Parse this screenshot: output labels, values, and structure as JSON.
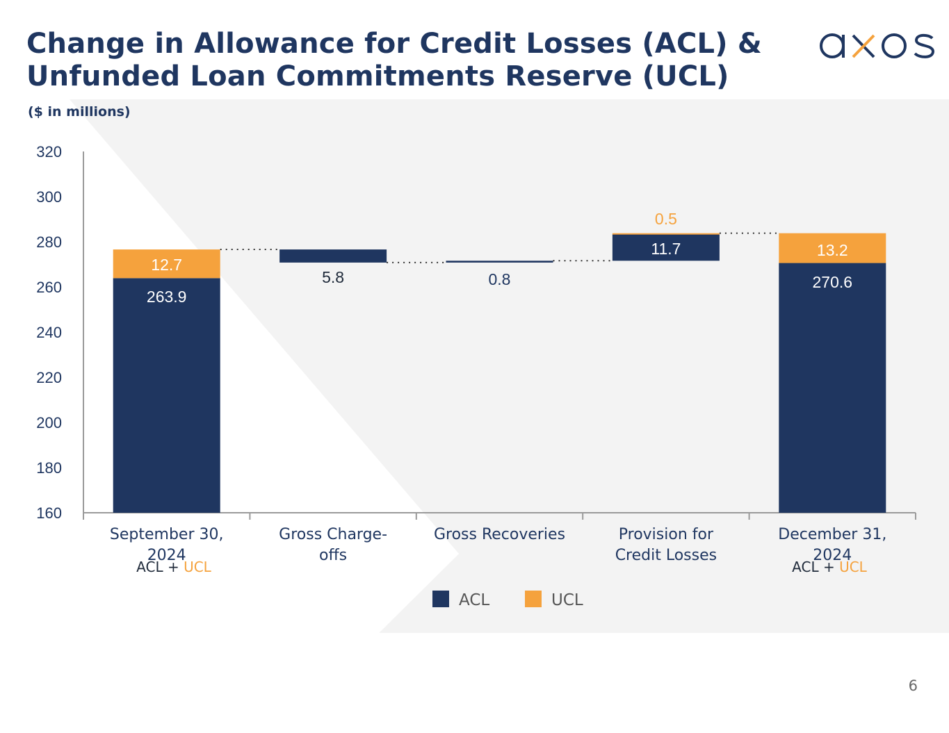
{
  "title_line1": "Change in Allowance for Credit Losses (ACL) &",
  "title_line2": "Unfunded Loan Commitments Reserve (UCL)",
  "subtitle": "($ in millions)",
  "logo": {
    "text": "axos",
    "colors": {
      "main": "#1f3660",
      "accent": "#f5a23d"
    }
  },
  "page_number": "6",
  "combo_note": {
    "left": "ACL",
    "plus": "+",
    "right": "UCL"
  },
  "colors": {
    "acl": "#1f3660",
    "ucl": "#f5a23d",
    "axis": "#9a9a9a",
    "panel": "#f3f3f3"
  },
  "chart_data": {
    "type": "bar",
    "subtype": "waterfall",
    "categories": [
      "September 30,\n2024",
      "Gross Charge-\noffs",
      "Gross Recoveries",
      "Provision for\nCredit Losses",
      "December 31,\n2024"
    ],
    "ylim": [
      160,
      320
    ],
    "yticks": [
      160,
      180,
      200,
      220,
      240,
      260,
      280,
      300,
      320
    ],
    "legend": [
      "ACL",
      "UCL"
    ],
    "legend_position": "bottom",
    "bars": [
      {
        "category": "September 30,\n2024",
        "segments": [
          {
            "series": "ACL",
            "from": 160,
            "to": 263.9,
            "label": "263.9"
          },
          {
            "series": "UCL",
            "from": 263.9,
            "to": 276.6,
            "label": "12.7"
          }
        ]
      },
      {
        "category": "Gross Charge-\noffs",
        "segments": [
          {
            "series": "ACL",
            "from": 270.8,
            "to": 276.6,
            "label": "5.8"
          }
        ]
      },
      {
        "category": "Gross Recoveries",
        "segments": [
          {
            "series": "ACL",
            "from": 270.8,
            "to": 271.6,
            "label": "0.8"
          }
        ]
      },
      {
        "category": "Provision for\nCredit Losses",
        "segments": [
          {
            "series": "ACL",
            "from": 271.6,
            "to": 283.3,
            "label": "11.7"
          },
          {
            "series": "UCL",
            "from": 283.3,
            "to": 283.8,
            "label": "0.5"
          }
        ]
      },
      {
        "category": "December 31,\n2024",
        "segments": [
          {
            "series": "ACL",
            "from": 160,
            "to": 270.6,
            "label": "270.6"
          },
          {
            "series": "UCL",
            "from": 270.6,
            "to": 283.8,
            "label": "13.2"
          }
        ]
      }
    ]
  }
}
